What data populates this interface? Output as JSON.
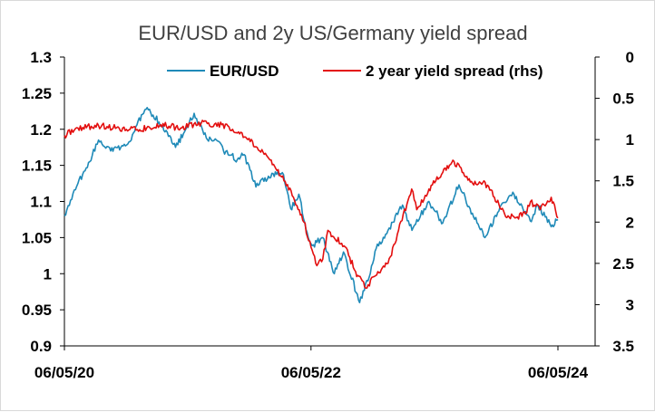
{
  "chart_data": {
    "type": "line",
    "title": "EUR/USD and 2y US/Germany yield spread",
    "xlabel": "",
    "ylabel": "",
    "x_tick_labels": [
      "06/05/20",
      "06/05/22",
      "06/05/24"
    ],
    "x_range": [
      "2020-05-06",
      "2024-05-06"
    ],
    "y_left": {
      "range": [
        0.9,
        1.3
      ],
      "ticks": [
        "1.3",
        "1.25",
        "1.2",
        "1.15",
        "1.1",
        "1.05",
        "1",
        "0.95",
        "0.9"
      ]
    },
    "y_right": {
      "range": [
        0,
        3.5
      ],
      "inverted": true,
      "ticks": [
        "0",
        "0.5",
        "1",
        "1.5",
        "2",
        "2.5",
        "3",
        "3.5"
      ]
    },
    "legend_position": "top",
    "grid": false,
    "series": [
      {
        "name": "EUR/USD",
        "axis": "left",
        "color": "#1f8ab8",
        "points": [
          [
            "2020-05-06",
            1.08
          ],
          [
            "2020-06-15",
            1.125
          ],
          [
            "2020-07-20",
            1.155
          ],
          [
            "2020-08-15",
            1.185
          ],
          [
            "2020-09-20",
            1.17
          ],
          [
            "2020-10-20",
            1.175
          ],
          [
            "2020-11-20",
            1.185
          ],
          [
            "2020-12-20",
            1.22
          ],
          [
            "2021-01-06",
            1.23
          ],
          [
            "2021-02-10",
            1.21
          ],
          [
            "2021-03-31",
            1.175
          ],
          [
            "2021-04-30",
            1.2
          ],
          [
            "2021-05-25",
            1.222
          ],
          [
            "2021-06-30",
            1.188
          ],
          [
            "2021-07-30",
            1.185
          ],
          [
            "2021-08-20",
            1.17
          ],
          [
            "2021-09-30",
            1.158
          ],
          [
            "2021-10-20",
            1.165
          ],
          [
            "2021-11-24",
            1.12
          ],
          [
            "2021-12-31",
            1.135
          ],
          [
            "2022-02-10",
            1.14
          ],
          [
            "2022-03-07",
            1.09
          ],
          [
            "2022-03-31",
            1.11
          ],
          [
            "2022-04-28",
            1.05
          ],
          [
            "2022-05-13",
            1.04
          ],
          [
            "2022-06-10",
            1.05
          ],
          [
            "2022-07-14",
            1.0
          ],
          [
            "2022-08-10",
            1.03
          ],
          [
            "2022-09-27",
            0.96
          ],
          [
            "2022-10-25",
            0.995
          ],
          [
            "2022-11-15",
            1.035
          ],
          [
            "2022-12-20",
            1.06
          ],
          [
            "2023-02-01",
            1.095
          ],
          [
            "2023-03-01",
            1.06
          ],
          [
            "2023-04-20",
            1.1
          ],
          [
            "2023-05-31",
            1.07
          ],
          [
            "2023-07-18",
            1.123
          ],
          [
            "2023-08-20",
            1.09
          ],
          [
            "2023-10-03",
            1.05
          ],
          [
            "2023-11-20",
            1.095
          ],
          [
            "2023-12-28",
            1.11
          ],
          [
            "2024-02-14",
            1.073
          ],
          [
            "2024-03-08",
            1.095
          ],
          [
            "2024-04-16",
            1.065
          ],
          [
            "2024-05-06",
            1.075
          ]
        ]
      },
      {
        "name": "2 year yield spread (rhs)",
        "axis": "right",
        "color": "#e30f0f",
        "points": [
          [
            "2020-05-06",
            0.95
          ],
          [
            "2020-06-15",
            0.86
          ],
          [
            "2020-08-15",
            0.83
          ],
          [
            "2020-10-15",
            0.86
          ],
          [
            "2020-12-15",
            0.88
          ],
          [
            "2021-02-15",
            0.82
          ],
          [
            "2021-04-15",
            0.86
          ],
          [
            "2021-06-15",
            0.8
          ],
          [
            "2021-08-15",
            0.82
          ],
          [
            "2021-09-30",
            0.92
          ],
          [
            "2021-10-31",
            1.0
          ],
          [
            "2021-12-15",
            1.15
          ],
          [
            "2022-01-15",
            1.3
          ],
          [
            "2022-02-15",
            1.5
          ],
          [
            "2022-03-15",
            1.7
          ],
          [
            "2022-04-15",
            2.0
          ],
          [
            "2022-05-20",
            2.5
          ],
          [
            "2022-06-10",
            2.45
          ],
          [
            "2022-06-25",
            2.1
          ],
          [
            "2022-08-15",
            2.3
          ],
          [
            "2022-09-15",
            2.6
          ],
          [
            "2022-10-15",
            2.8
          ],
          [
            "2022-11-20",
            2.6
          ],
          [
            "2022-12-20",
            2.5
          ],
          [
            "2023-01-20",
            2.1
          ],
          [
            "2023-02-28",
            1.6
          ],
          [
            "2023-03-15",
            1.85
          ],
          [
            "2023-04-20",
            1.6
          ],
          [
            "2023-05-31",
            1.4
          ],
          [
            "2023-06-30",
            1.25
          ],
          [
            "2023-07-31",
            1.4
          ],
          [
            "2023-08-31",
            1.55
          ],
          [
            "2023-09-30",
            1.5
          ],
          [
            "2023-10-31",
            1.7
          ],
          [
            "2023-11-30",
            1.9
          ],
          [
            "2023-12-31",
            1.95
          ],
          [
            "2024-01-31",
            1.9
          ],
          [
            "2024-02-15",
            1.75
          ],
          [
            "2024-03-15",
            1.85
          ],
          [
            "2024-04-16",
            1.7
          ],
          [
            "2024-05-06",
            1.95
          ]
        ]
      }
    ]
  }
}
